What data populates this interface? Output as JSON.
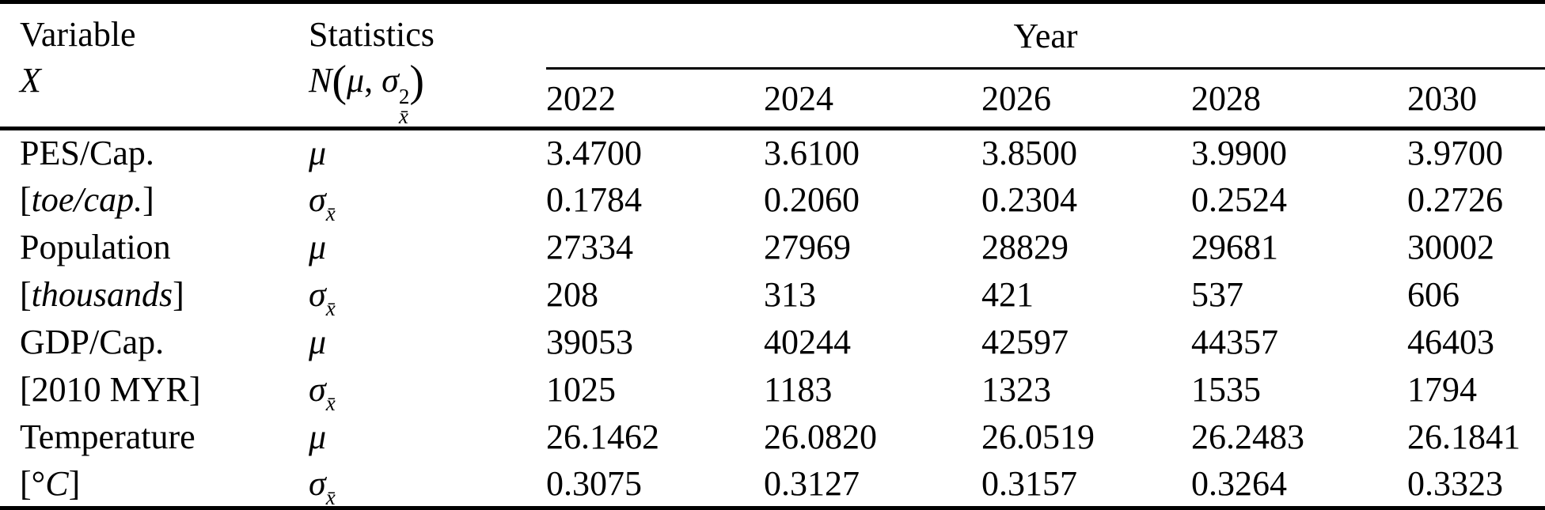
{
  "table": {
    "header": {
      "variable_label": "Variable",
      "variable_symbol": "X",
      "statistics_label": "Statistics",
      "distribution": {
        "N": "N",
        "open": "(",
        "mu": "μ",
        "comma": ", ",
        "sigma": "σ",
        "sup": "2",
        "xbar": "x̄",
        "close": ")"
      },
      "year_label": "Year",
      "years": [
        "2022",
        "2024",
        "2026",
        "2028",
        "2030"
      ]
    },
    "symbols": {
      "mu": "μ",
      "sigma": "σ",
      "xbar": "x̄"
    },
    "rows": [
      {
        "name": "PES/Cap.",
        "unit": {
          "pre": "[",
          "it": "toe/cap.",
          "post": "]"
        },
        "mu": [
          "3.4700",
          "3.6100",
          "3.8500",
          "3.9900",
          "3.9700"
        ],
        "sigma": [
          "0.1784",
          "0.2060",
          "0.2304",
          "0.2524",
          "0.2726"
        ]
      },
      {
        "name": "Population",
        "unit": {
          "pre": "[",
          "it": "thousands",
          "post": "]"
        },
        "mu": [
          "27334",
          "27969",
          "28829",
          "29681",
          "30002"
        ],
        "sigma": [
          "208",
          "313",
          "421",
          "537",
          "606"
        ]
      },
      {
        "name": "GDP/Cap.",
        "unit": {
          "pre": "[2010 MYR]",
          "it": "",
          "post": ""
        },
        "mu": [
          "39053",
          "40244",
          "42597",
          "44357",
          "46403"
        ],
        "sigma": [
          "1025",
          "1183",
          "1323",
          "1535",
          "1794"
        ]
      },
      {
        "name": "Temperature",
        "unit": {
          "pre": "[°",
          "it": "C",
          "post": "]"
        },
        "mu": [
          "26.1462",
          "26.0820",
          "26.0519",
          "26.2483",
          "26.1841"
        ],
        "sigma": [
          "0.3075",
          "0.3127",
          "0.3157",
          "0.3264",
          "0.3323"
        ]
      }
    ]
  },
  "chart_data": {
    "type": "table",
    "title": "Descriptive statistics N(μ, σ²x̄) by forecast year",
    "columns": [
      "Variable X",
      "Statistics N(μ, σ²x̄)",
      "2022",
      "2024",
      "2026",
      "2028",
      "2030"
    ],
    "rows": [
      [
        "PES/Cap. [toe/cap.]",
        "μ",
        "3.4700",
        "3.6100",
        "3.8500",
        "3.9900",
        "3.9700"
      ],
      [
        "PES/Cap. [toe/cap.]",
        "σx̄",
        "0.1784",
        "0.2060",
        "0.2304",
        "0.2524",
        "0.2726"
      ],
      [
        "Population [thousands]",
        "μ",
        "27334",
        "27969",
        "28829",
        "29681",
        "30002"
      ],
      [
        "Population [thousands]",
        "σx̄",
        "208",
        "313",
        "421",
        "537",
        "606"
      ],
      [
        "GDP/Cap. [2010 MYR]",
        "μ",
        "39053",
        "40244",
        "42597",
        "44357",
        "46403"
      ],
      [
        "GDP/Cap. [2010 MYR]",
        "σx̄",
        "1025",
        "1183",
        "1323",
        "1535",
        "1794"
      ],
      [
        "Temperature [°C]",
        "μ",
        "26.1462",
        "26.0820",
        "26.0519",
        "26.2483",
        "26.1841"
      ],
      [
        "Temperature [°C]",
        "σx̄",
        "0.3075",
        "0.3127",
        "0.3157",
        "0.3264",
        "0.3323"
      ]
    ]
  }
}
